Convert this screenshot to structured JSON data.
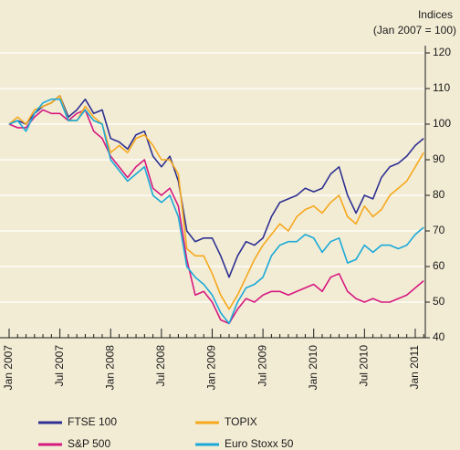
{
  "chart_data": {
    "type": "line",
    "ylabel": [
      "Indices",
      "(Jan 2007 = 100)"
    ],
    "categories": [
      "Jan 2007",
      null,
      null,
      null,
      null,
      null,
      "Jul 2007",
      null,
      null,
      null,
      null,
      null,
      "Jan 2008",
      null,
      null,
      null,
      null,
      null,
      "Jul 2008",
      null,
      null,
      null,
      null,
      null,
      "Jan 2009",
      null,
      null,
      null,
      null,
      null,
      "Jul 2009",
      null,
      null,
      null,
      null,
      null,
      "Jan 2010",
      null,
      null,
      null,
      null,
      null,
      "Jul 2010",
      null,
      null,
      null,
      null,
      null,
      "Jan 2011",
      null
    ],
    "series": [
      {
        "name": "FTSE 100",
        "color": "#2e3192",
        "values": [
          100,
          101,
          100,
          103,
          105,
          106,
          108,
          102,
          104,
          107,
          103,
          104,
          96,
          95,
          93,
          97,
          98,
          91,
          88,
          91,
          84,
          70,
          67,
          68,
          68,
          63,
          57,
          63,
          67,
          66,
          68,
          74,
          78,
          79,
          80,
          82,
          81,
          82,
          86,
          88,
          80,
          75,
          80,
          79,
          85,
          88,
          89,
          91,
          94,
          96
        ]
      },
      {
        "name": "S&P 500",
        "color": "#d6197f",
        "values": [
          100,
          99,
          99,
          102,
          104,
          103,
          103,
          101,
          103,
          104,
          98,
          96,
          91,
          88,
          85,
          88,
          90,
          82,
          80,
          82,
          77,
          62,
          52,
          53,
          50,
          45,
          44,
          48,
          51,
          50,
          52,
          53,
          53,
          52,
          53,
          54,
          55,
          53,
          57,
          58,
          53,
          51,
          50,
          51,
          50,
          50,
          51,
          52,
          54,
          56
        ]
      },
      {
        "name": "TOPIX",
        "color": "#f5a81c",
        "values": [
          100,
          102,
          100,
          104,
          105,
          106,
          108,
          101,
          101,
          105,
          102,
          100,
          92,
          94,
          92,
          96,
          97,
          94,
          90,
          90,
          86,
          65,
          63,
          63,
          58,
          52,
          48,
          52,
          57,
          62,
          66,
          69,
          72,
          70,
          74,
          76,
          77,
          75,
          78,
          80,
          74,
          72,
          77,
          74,
          76,
          80,
          82,
          84,
          88,
          92
        ]
      },
      {
        "name": "Euro Stoxx 50",
        "color": "#1aa9d8",
        "values": [
          100,
          101,
          98,
          103,
          106,
          107,
          107,
          101,
          101,
          104,
          101,
          100,
          90,
          87,
          84,
          86,
          88,
          80,
          78,
          80,
          74,
          60,
          57,
          55,
          52,
          47,
          44,
          50,
          54,
          55,
          57,
          63,
          66,
          67,
          67,
          69,
          68,
          64,
          67,
          68,
          61,
          62,
          66,
          64,
          66,
          66,
          65,
          66,
          69,
          71
        ]
      }
    ],
    "ylim": [
      40,
      120
    ],
    "yticks": [
      40,
      50,
      60,
      70,
      80,
      90,
      100,
      110,
      120
    ],
    "grid": true
  }
}
